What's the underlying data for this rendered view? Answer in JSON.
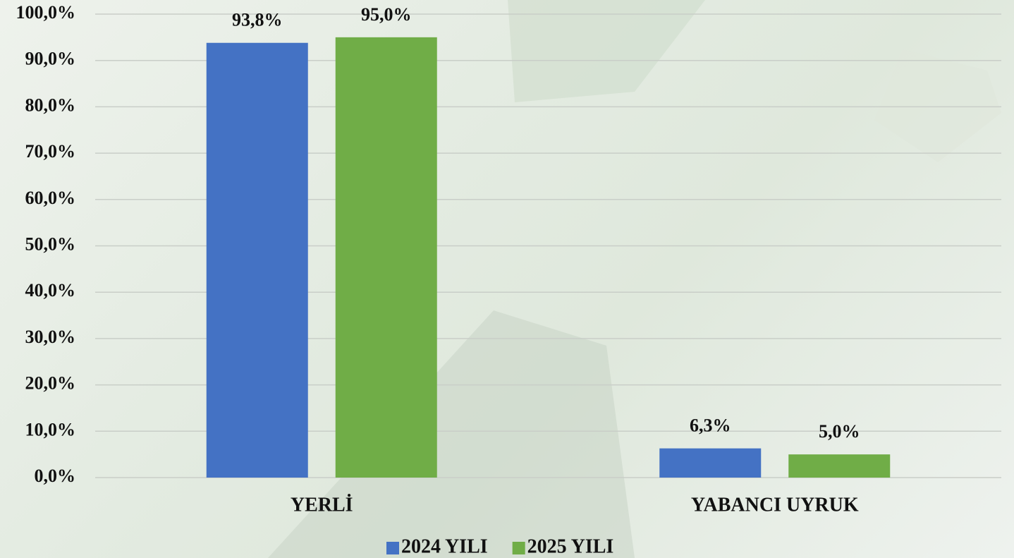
{
  "chart_data": {
    "type": "bar",
    "categories": [
      "YERLİ",
      "YABANCI UYRUK"
    ],
    "series": [
      {
        "name": "2024 YILI",
        "color": "#4472c4",
        "values": [
          93.8,
          6.3
        ],
        "value_labels": [
          "93,8%",
          "6,3%"
        ]
      },
      {
        "name": "2025 YILI",
        "color": "#70ad47",
        "values": [
          95.0,
          5.0
        ],
        "value_labels": [
          "95,0%",
          "5,0%"
        ]
      }
    ],
    "ylim": [
      0,
      100
    ],
    "yticks": [
      {
        "value": 0,
        "label": "0,0%"
      },
      {
        "value": 10,
        "label": "10,0%"
      },
      {
        "value": 20,
        "label": "20,0%"
      },
      {
        "value": 30,
        "label": "30,0%"
      },
      {
        "value": 40,
        "label": "40,0%"
      },
      {
        "value": 50,
        "label": "50,0%"
      },
      {
        "value": 60,
        "label": "60,0%"
      },
      {
        "value": 70,
        "label": "70,0%"
      },
      {
        "value": 80,
        "label": "80,0%"
      },
      {
        "value": 90,
        "label": "90,0%"
      },
      {
        "value": 100,
        "label": "100,0%"
      }
    ],
    "grid": true,
    "legend": "bottom"
  }
}
